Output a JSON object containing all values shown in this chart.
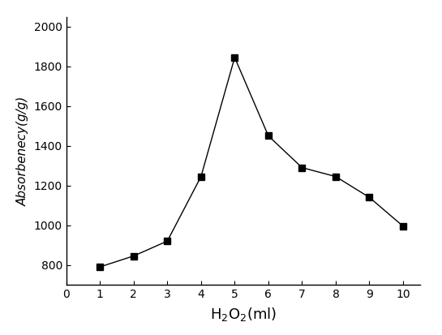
{
  "x": [
    1,
    2,
    3,
    4,
    5,
    6,
    7,
    8,
    9,
    10
  ],
  "y": [
    790,
    845,
    920,
    1245,
    1845,
    1450,
    1290,
    1245,
    1140,
    995
  ],
  "xlabel": "H$_2$O$_2$(ml)",
  "ylabel": "Absorbenecy(g/g)",
  "xlim": [
    0,
    10.5
  ],
  "ylim": [
    700,
    2050
  ],
  "xticks": [
    0,
    1,
    2,
    3,
    4,
    5,
    6,
    7,
    8,
    9,
    10
  ],
  "yticks": [
    800,
    1000,
    1200,
    1400,
    1600,
    1800,
    2000
  ],
  "line_color": "#000000",
  "marker": "s",
  "marker_size": 6,
  "marker_color": "#000000",
  "line_width": 1.0,
  "linestyle": "-",
  "figsize": [
    5.45,
    4.13
  ],
  "dpi": 100
}
